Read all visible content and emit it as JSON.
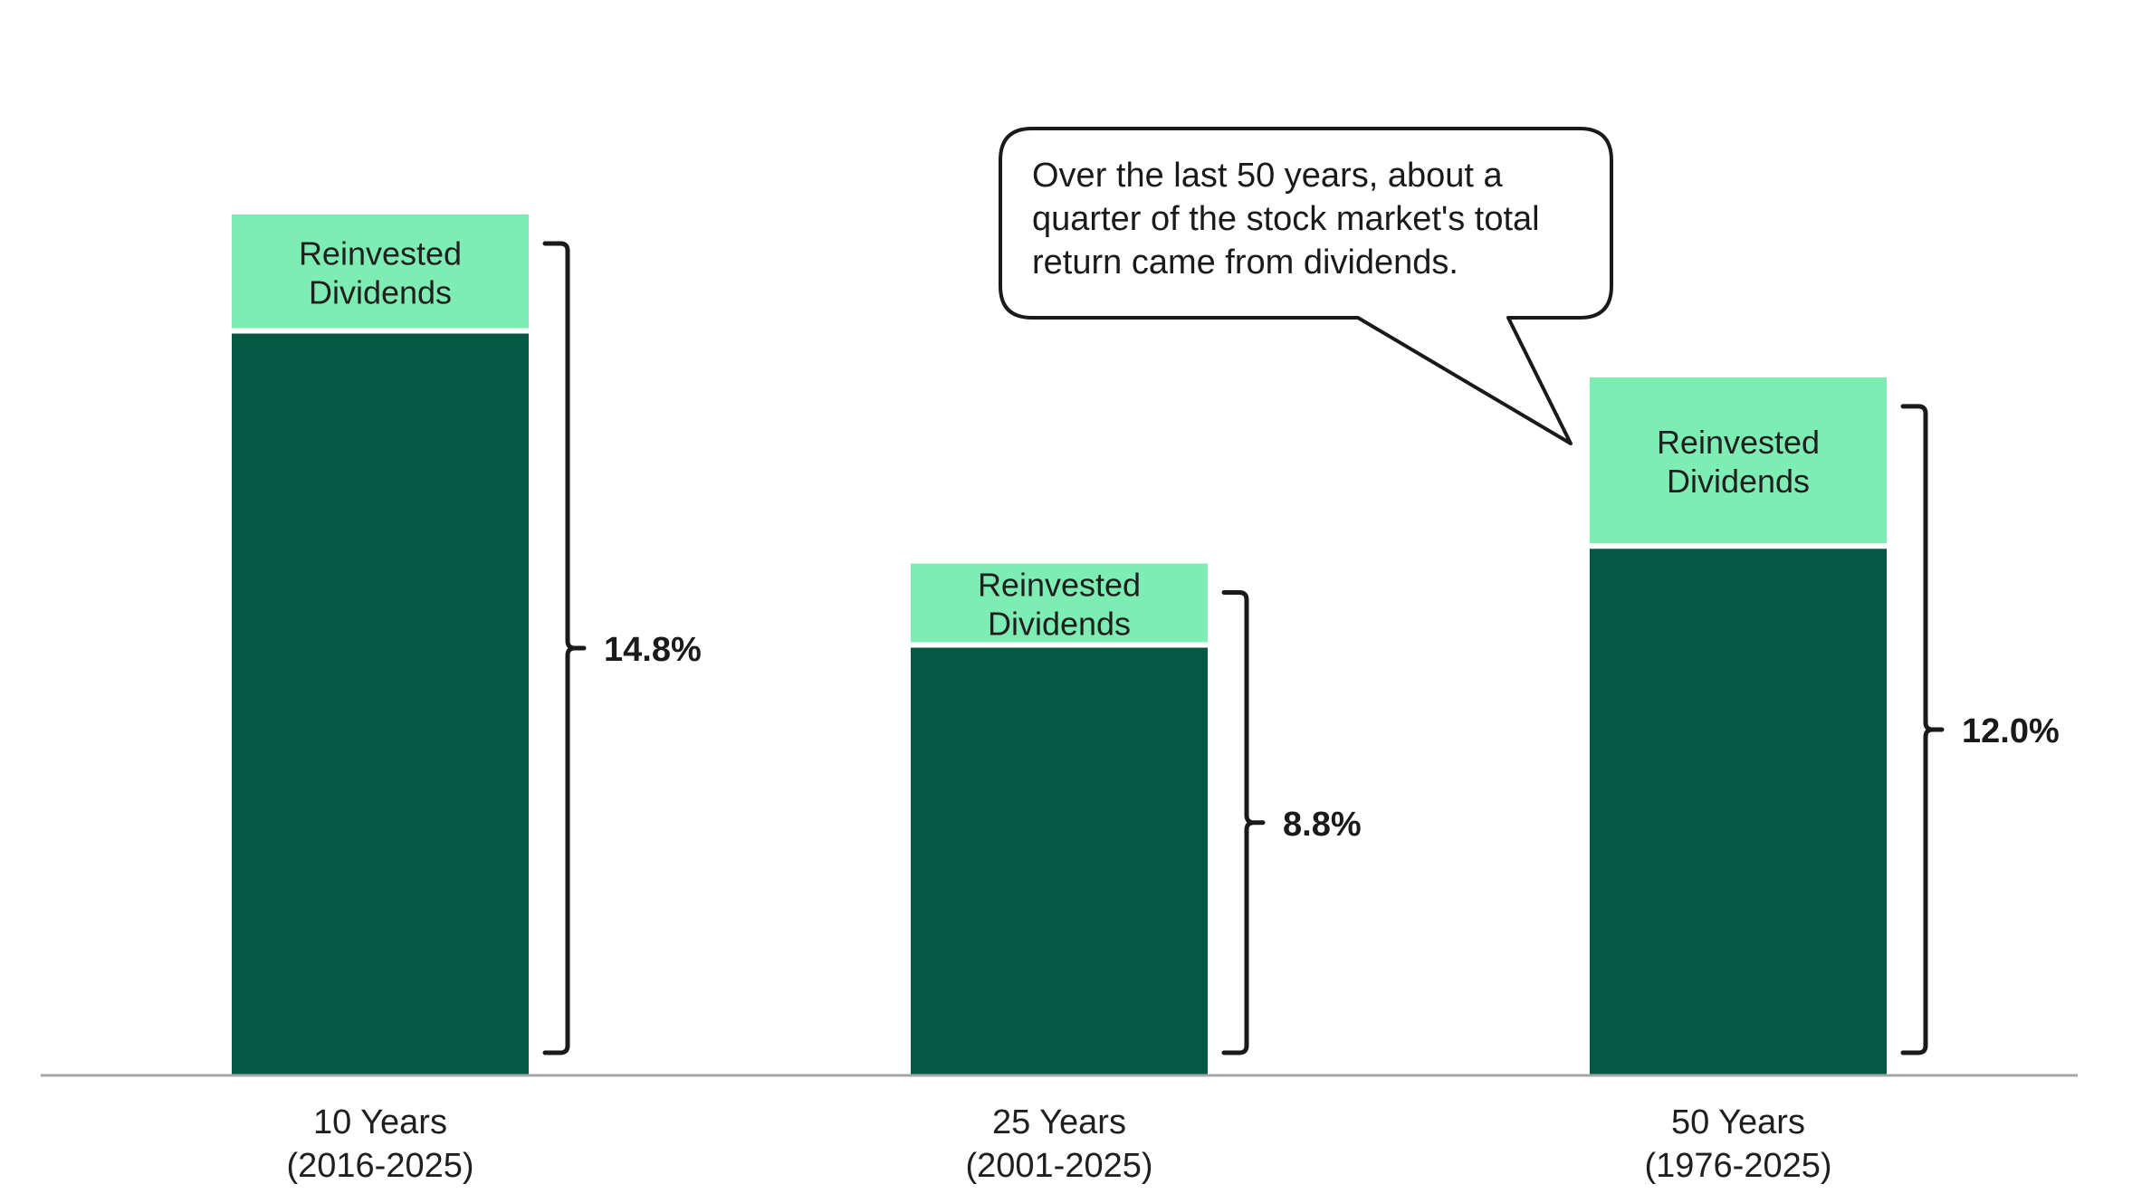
{
  "chart_data": {
    "type": "bar",
    "stacked": true,
    "categories": [
      {
        "line1": "10 Years",
        "line2": "(2016-2025)"
      },
      {
        "line1": "25 Years",
        "line2": "(2001-2025)"
      },
      {
        "line1": "50 Years",
        "line2": "(1976-2025)"
      }
    ],
    "series": [
      {
        "values": [
          12.8,
          7.4,
          9.1
        ],
        "color": "#045945"
      },
      {
        "name": "Reinvested Dividends",
        "values": [
          2.0,
          1.4,
          2.9
        ],
        "color": "#7eedb4"
      }
    ],
    "segment_label": {
      "line1": "Reinvested",
      "line2": "Dividends"
    },
    "totals": [
      "14.8%",
      "8.8%",
      "12.0%"
    ],
    "total_values": [
      14.8,
      8.8,
      12.0
    ],
    "ylim": [
      0,
      14.8
    ],
    "grid": false,
    "axis_color": "#a6a6a6",
    "annotation": {
      "lines": [
        "Over the last 50 years, about a",
        "quarter of the stock market's total",
        "return came from dividends."
      ],
      "points_to_category": 2
    }
  }
}
